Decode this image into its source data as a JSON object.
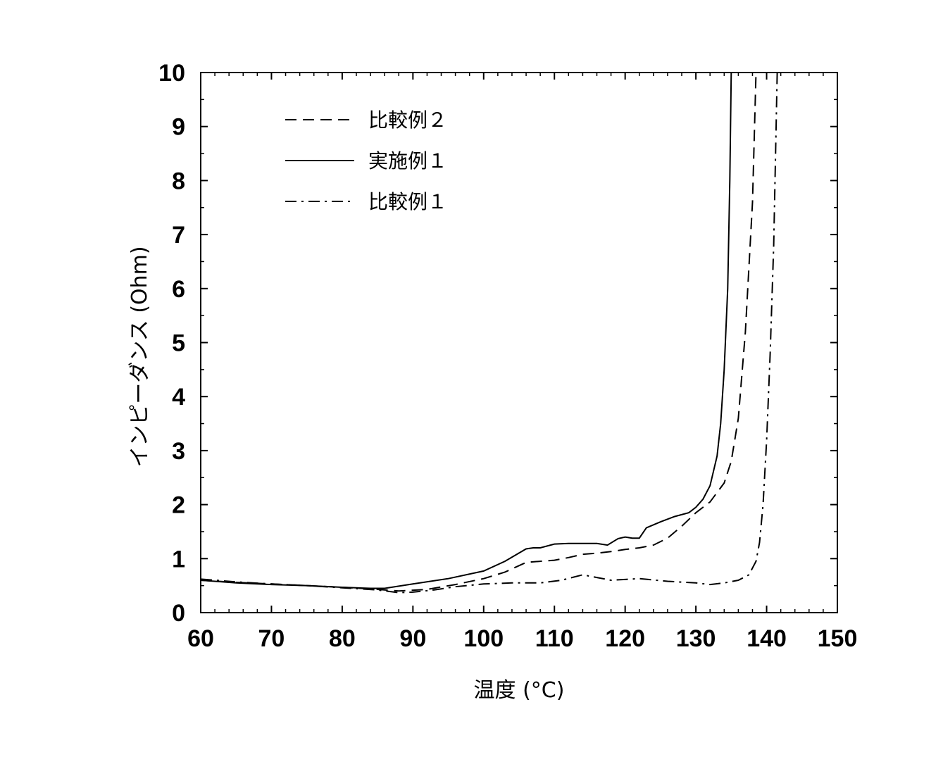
{
  "chart_data": {
    "type": "line",
    "xlabel": "温度 (°C)",
    "ylabel": "インピーダンス (Ohm)",
    "xlim": [
      60,
      150
    ],
    "ylim": [
      0,
      10
    ],
    "xticks": [
      60,
      70,
      80,
      90,
      100,
      110,
      120,
      130,
      140,
      150
    ],
    "yticks": [
      0,
      1,
      2,
      3,
      4,
      5,
      6,
      7,
      8,
      9,
      10
    ],
    "grid": false,
    "legend_position": "top-left",
    "series": [
      {
        "name": "比較例２",
        "style": "dashed",
        "color": "#000000",
        "x": [
          60,
          65,
          70,
          75,
          80,
          84,
          88,
          92,
          96,
          100,
          103,
          106,
          108,
          110,
          112,
          114,
          116,
          118,
          120,
          122,
          124,
          126,
          128,
          130,
          132,
          134,
          135,
          136,
          137,
          138,
          138.5
        ],
        "y": [
          0.6,
          0.56,
          0.53,
          0.5,
          0.47,
          0.44,
          0.4,
          0.43,
          0.52,
          0.63,
          0.75,
          0.93,
          0.95,
          0.97,
          1.02,
          1.08,
          1.1,
          1.13,
          1.17,
          1.2,
          1.25,
          1.38,
          1.6,
          1.85,
          2.05,
          2.4,
          2.8,
          3.6,
          5.2,
          7.6,
          10
        ]
      },
      {
        "name": "実施例１",
        "style": "solid",
        "color": "#000000",
        "x": [
          60,
          65,
          70,
          75,
          80,
          84,
          86,
          90,
          95,
          100,
          103,
          106,
          107,
          108,
          110,
          112,
          114,
          116,
          117.5,
          119,
          120,
          121,
          122,
          123,
          125,
          127,
          129,
          130,
          131,
          132,
          133,
          133.5,
          134,
          134.5,
          134.8,
          135
        ],
        "y": [
          0.6,
          0.55,
          0.52,
          0.5,
          0.47,
          0.45,
          0.45,
          0.53,
          0.63,
          0.77,
          0.95,
          1.18,
          1.2,
          1.2,
          1.27,
          1.28,
          1.28,
          1.28,
          1.25,
          1.37,
          1.4,
          1.38,
          1.38,
          1.57,
          1.68,
          1.78,
          1.85,
          1.95,
          2.1,
          2.35,
          2.9,
          3.5,
          4.5,
          6.0,
          8.0,
          10
        ]
      },
      {
        "name": "比較例１",
        "style": "dash-dot",
        "color": "#000000",
        "x": [
          60,
          65,
          70,
          75,
          80,
          85,
          88,
          90,
          93,
          96,
          100,
          104,
          108,
          111,
          114,
          116,
          118,
          122,
          126,
          130,
          132,
          134,
          136,
          137.5,
          138.5,
          139,
          139.5,
          140,
          140.5,
          141,
          141.5
        ],
        "y": [
          0.62,
          0.57,
          0.53,
          0.5,
          0.46,
          0.42,
          0.37,
          0.38,
          0.42,
          0.48,
          0.53,
          0.55,
          0.55,
          0.6,
          0.7,
          0.65,
          0.6,
          0.63,
          0.58,
          0.55,
          0.52,
          0.55,
          0.6,
          0.7,
          0.95,
          1.3,
          2.0,
          3.2,
          4.8,
          6.8,
          10
        ]
      }
    ]
  }
}
